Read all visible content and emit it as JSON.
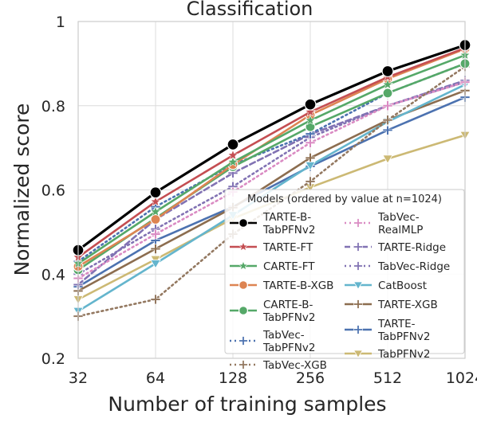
{
  "chart_data": {
    "type": "line",
    "title": "Classification",
    "xlabel": "Number of training samples",
    "ylabel": "Normalized score",
    "x": [
      32,
      64,
      128,
      256,
      512,
      1024
    ],
    "x_scale": "log2",
    "x_tick_labels": [
      "32",
      "64",
      "128",
      "256",
      "512",
      "1024"
    ],
    "ylim": [
      0.2,
      1.0
    ],
    "y_ticks": [
      0.2,
      0.4,
      0.6,
      0.8,
      1.0
    ],
    "y_tick_labels": [
      "0.2",
      "0.4",
      "0.6",
      "0.8",
      "1"
    ],
    "grid": true,
    "legend": {
      "title": "Models (ordered by value at n=1024)",
      "placement": "lower-right",
      "columns": 2
    },
    "series": [
      {
        "name": "TARTE-B-\nTabPFNv2",
        "color": "#000000",
        "marker": "circle",
        "dash": "solid",
        "values": [
          0.457,
          0.594,
          0.708,
          0.803,
          0.882,
          0.944
        ]
      },
      {
        "name": "TARTE-FT",
        "color": "#c44e52",
        "marker": "star",
        "dash": "solid",
        "values": [
          0.44,
          0.572,
          0.682,
          0.785,
          0.868,
          0.937
        ]
      },
      {
        "name": "CARTE-FT",
        "color": "#55a868",
        "marker": "star",
        "dash": "solid",
        "values": [
          0.425,
          0.548,
          0.666,
          0.765,
          0.85,
          0.92
        ]
      },
      {
        "name": "TARTE-B-XGB",
        "color": "#dd8452",
        "marker": "circle",
        "dash": "solid",
        "values": [
          0.418,
          0.53,
          0.66,
          0.778,
          0.864,
          0.935
        ]
      },
      {
        "name": "CARTE-B-\nTabPFNv2",
        "color": "#55a868",
        "marker": "circle",
        "dash": "solid",
        "values": [
          0.41,
          0.533,
          0.655,
          0.75,
          0.83,
          0.9
        ]
      },
      {
        "name": "TabVec-\nTabPFNv2",
        "color": "#4c72b0",
        "marker": "plus",
        "dash": "dot",
        "values": [
          0.43,
          0.56,
          0.66,
          0.733,
          0.83,
          0.9
        ]
      },
      {
        "name": "TabVec-XGB",
        "color": "#937860",
        "marker": "plus",
        "dash": "dot",
        "values": [
          0.3,
          0.34,
          0.495,
          0.62,
          0.766,
          0.893
        ]
      },
      {
        "name": "TabVec-\nRealMLP",
        "color": "#da8bc3",
        "marker": "plus",
        "dash": "dot",
        "values": [
          0.39,
          0.495,
          0.595,
          0.712,
          0.8,
          0.856
        ]
      },
      {
        "name": "TARTE-Ridge",
        "color": "#8172b3",
        "marker": "plus",
        "dash": "dash",
        "values": [
          0.375,
          0.53,
          0.64,
          0.732,
          0.8,
          0.86
        ]
      },
      {
        "name": "TabVec-Ridge",
        "color": "#8172b3",
        "marker": "plus",
        "dash": "dot",
        "values": [
          0.4,
          0.507,
          0.608,
          0.725,
          0.8,
          0.856
        ]
      },
      {
        "name": "CatBoost",
        "color": "#64b5cd",
        "marker": "triangle",
        "dash": "solid",
        "values": [
          0.312,
          0.425,
          0.54,
          0.658,
          0.762,
          0.85
        ]
      },
      {
        "name": "TARTE-XGB",
        "color": "#8c6d4f",
        "marker": "plus",
        "dash": "solid",
        "values": [
          0.36,
          0.46,
          0.558,
          0.676,
          0.766,
          0.836
        ]
      },
      {
        "name": "TARTE-\nTabPFNv2",
        "color": "#4c72b0",
        "marker": "plus",
        "dash": "solid",
        "values": [
          0.37,
          0.48,
          0.56,
          0.656,
          0.742,
          0.82
        ]
      },
      {
        "name": "TabPFNv2",
        "color": "#ccb974",
        "marker": "triangle",
        "dash": "solid",
        "values": [
          0.34,
          0.435,
          0.532,
          0.606,
          0.674,
          0.73
        ]
      }
    ]
  }
}
